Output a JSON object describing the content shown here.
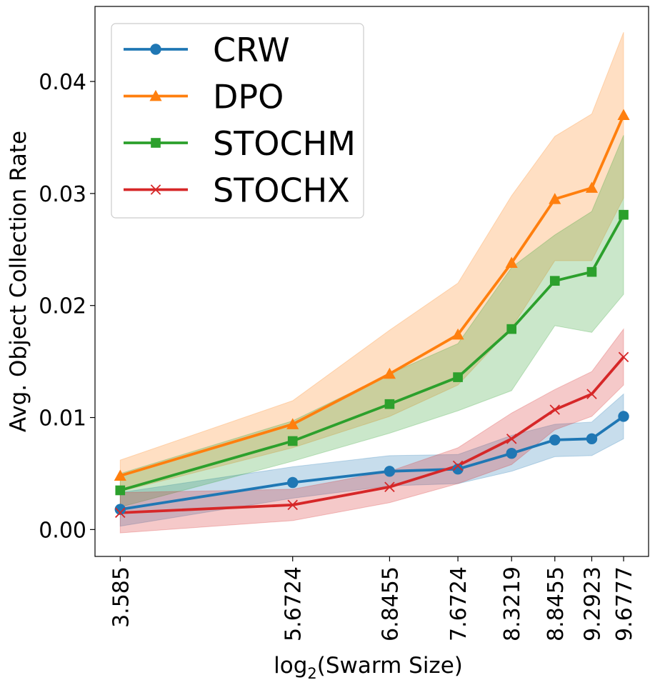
{
  "chart_data": {
    "type": "line",
    "xlabel_prefix": "log",
    "xlabel_sub": "2",
    "xlabel_rest": "(Swarm Size)",
    "ylabel": "Avg. Object Collection Rate",
    "x": [
      3.585,
      5.6724,
      6.8455,
      7.6724,
      8.3219,
      8.8455,
      9.2923,
      9.6777
    ],
    "x_tick_labels": [
      "3.585",
      "5.6724",
      "6.8455",
      "7.6724",
      "8.3219",
      "8.8455",
      "9.2923",
      "9.6777"
    ],
    "y_ticks": [
      0.0,
      0.01,
      0.02,
      0.03,
      0.04
    ],
    "y_tick_labels": [
      "0.00",
      "0.01",
      "0.02",
      "0.03",
      "0.04"
    ],
    "xlim": [
      3.28,
      9.98
    ],
    "ylim": [
      -0.0024,
      0.0467
    ],
    "grid": false,
    "legend_position": "top-left",
    "series": [
      {
        "name": "CRW",
        "color": "#1f77b4",
        "marker": "circle",
        "values": [
          0.0018,
          0.0042,
          0.0052,
          0.0054,
          0.0068,
          0.008,
          0.0081,
          0.0101
        ],
        "lower": [
          0.0003,
          0.0028,
          0.0039,
          0.0041,
          0.0052,
          0.0065,
          0.0066,
          0.0081
        ],
        "upper": [
          0.0033,
          0.0056,
          0.0066,
          0.0067,
          0.0084,
          0.0094,
          0.0096,
          0.0121
        ]
      },
      {
        "name": "DPO",
        "color": "#ff7f0e",
        "marker": "triangle",
        "values": [
          0.0048,
          0.0094,
          0.0139,
          0.0174,
          0.0238,
          0.0295,
          0.0305,
          0.037
        ],
        "lower": [
          0.0034,
          0.0073,
          0.0101,
          0.0129,
          0.018,
          0.024,
          0.024,
          0.0296
        ],
        "upper": [
          0.0062,
          0.0115,
          0.0178,
          0.022,
          0.0298,
          0.0351,
          0.0371,
          0.0444
        ]
      },
      {
        "name": "STOCHM",
        "color": "#2ca02c",
        "marker": "square",
        "values": [
          0.0035,
          0.0079,
          0.0112,
          0.0136,
          0.0179,
          0.0222,
          0.023,
          0.0281
        ],
        "lower": [
          0.002,
          0.0061,
          0.0086,
          0.0106,
          0.0124,
          0.0182,
          0.0176,
          0.021
        ],
        "upper": [
          0.005,
          0.0097,
          0.0139,
          0.0166,
          0.0234,
          0.0263,
          0.0284,
          0.0352
        ]
      },
      {
        "name": "STOCHX",
        "color": "#d62728",
        "marker": "x",
        "values": [
          0.0015,
          0.0022,
          0.0038,
          0.0057,
          0.0081,
          0.0107,
          0.0121,
          0.0154
        ],
        "lower": [
          -0.0003,
          0.0008,
          0.0024,
          0.0041,
          0.0058,
          0.0089,
          0.0101,
          0.0129
        ],
        "upper": [
          0.0033,
          0.0036,
          0.0052,
          0.0073,
          0.0104,
          0.0125,
          0.0141,
          0.0179
        ]
      }
    ]
  }
}
